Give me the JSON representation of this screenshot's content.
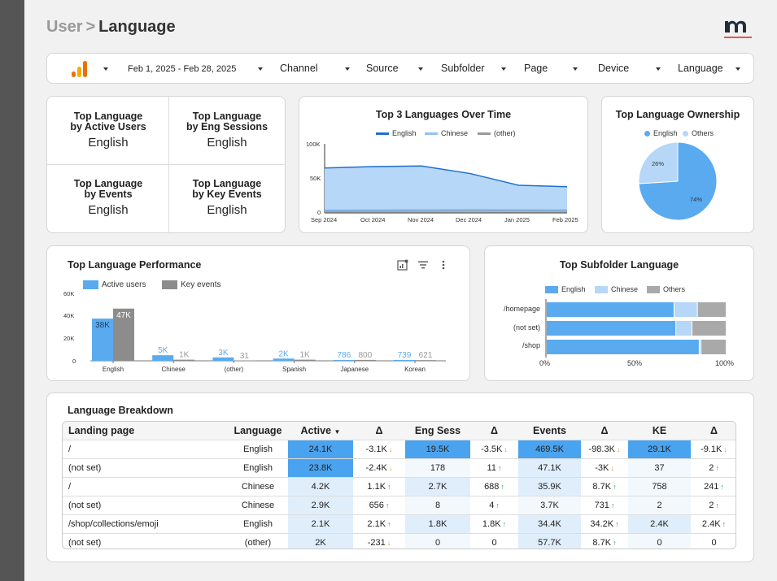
{
  "breadcrumb": {
    "parent": "User",
    "separator": ">",
    "current": "Language"
  },
  "filters": {
    "date_range": "Feb 1, 2025 - Feb 28, 2025",
    "items": [
      "Channel",
      "Source",
      "Subfolder",
      "Page",
      "Device",
      "Language"
    ]
  },
  "kpis": [
    {
      "label1": "Top Language",
      "label2": "by Active Users",
      "value": "English"
    },
    {
      "label1": "Top Language",
      "label2": "by Eng Sessions",
      "value": "English"
    },
    {
      "label1": "Top Language",
      "label2": "by Events",
      "value": "English"
    },
    {
      "label1": "Top Language",
      "label2": "by Key Events",
      "value": "English"
    }
  ],
  "colors": {
    "blue": "#5aaaf0",
    "light_blue": "#b6d7f7",
    "gray": "#9a9a9a",
    "green": "#2e9e3b",
    "orange": "#e8932a"
  },
  "over_time": {
    "title": "Top 3 Languages Over Time",
    "legend": [
      "English",
      "Chinese",
      "(other)"
    ],
    "y_ticks": [
      "100K",
      "50K",
      "0"
    ],
    "x_ticks": [
      "Sep 2024",
      "Oct 2024",
      "Nov 2024",
      "Dec 2024",
      "Jan 2025",
      "Feb 2025"
    ]
  },
  "ownership": {
    "title": "Top Language Ownership",
    "legend": [
      "English",
      "Others"
    ],
    "labels": [
      "74%",
      "26%"
    ]
  },
  "performance": {
    "title": "Top Language Performance",
    "legend": [
      "Active users",
      "Key events"
    ],
    "y_ticks": [
      "60K",
      "40K",
      "20K",
      "0"
    ],
    "categories": [
      "English",
      "Chinese",
      "(other)",
      "Spanish",
      "Japanese",
      "Korean"
    ],
    "active_labels": [
      "38K",
      "5K",
      "3K",
      "2K",
      "786",
      "739"
    ],
    "key_labels": [
      "47K",
      "1K",
      "31",
      "1K",
      "800",
      "621"
    ]
  },
  "subfolder": {
    "title": "Top Subfolder Language",
    "legend": [
      "English",
      "Chinese",
      "Others"
    ],
    "rows": [
      "/homepage",
      "(not set)",
      "/shop"
    ],
    "x_ticks": [
      "0%",
      "50%",
      "100%"
    ]
  },
  "breakdown": {
    "title": "Language Breakdown",
    "headers": [
      "Landing page",
      "Language",
      "Active",
      "Δ",
      "Eng Sess",
      "Δ",
      "Events",
      "Δ",
      "KE",
      "Δ"
    ],
    "rows": [
      [
        "/",
        "English",
        "24.1K",
        "-3.1K",
        "19.5K",
        "-3.5K",
        "469.5K",
        "-98.3K",
        "29.1K",
        "-9.1K"
      ],
      [
        "(not set)",
        "English",
        "23.8K",
        "-2.4K",
        "178",
        "11",
        "47.1K",
        "-3K",
        "37",
        "2"
      ],
      [
        "/",
        "Chinese",
        "4.2K",
        "1.1K",
        "2.7K",
        "688",
        "35.9K",
        "8.7K",
        "758",
        "241"
      ],
      [
        "(not set)",
        "Chinese",
        "2.9K",
        "656",
        "8",
        "4",
        "3.7K",
        "731",
        "2",
        "2"
      ],
      [
        "/shop/collections/emoji",
        "English",
        "2.1K",
        "2.1K",
        "1.8K",
        "1.8K",
        "34.4K",
        "34.2K",
        "2.4K",
        "2.4K"
      ],
      [
        "(not set)",
        "(other)",
        "2K",
        "-231",
        "0",
        "0",
        "57.7K",
        "8.7K",
        "0",
        "0"
      ]
    ]
  },
  "chart_data": [
    {
      "type": "area",
      "title": "Top 3 Languages Over Time",
      "x": [
        "Sep 2024",
        "Oct 2024",
        "Nov 2024",
        "Dec 2024",
        "Jan 2025",
        "Feb 2025"
      ],
      "ylim": [
        0,
        100000
      ],
      "series": [
        {
          "name": "English",
          "values": [
            65000,
            67000,
            68000,
            57000,
            40000,
            38000
          ]
        },
        {
          "name": "Chinese",
          "values": [
            4000,
            4200,
            4500,
            4800,
            4500,
            4200
          ]
        },
        {
          "name": "(other)",
          "values": [
            2000,
            2200,
            2300,
            2500,
            2400,
            2300
          ]
        }
      ]
    },
    {
      "type": "pie",
      "title": "Top Language Ownership",
      "categories": [
        "English",
        "Others"
      ],
      "values": [
        74,
        26
      ]
    },
    {
      "type": "bar",
      "title": "Top Language Performance",
      "categories": [
        "English",
        "Chinese",
        "(other)",
        "Spanish",
        "Japanese",
        "Korean"
      ],
      "ylim": [
        0,
        60000
      ],
      "series": [
        {
          "name": "Active users",
          "values": [
            38000,
            5000,
            3000,
            2000,
            786,
            739
          ]
        },
        {
          "name": "Key events",
          "values": [
            47000,
            1000,
            31,
            1000,
            800,
            621
          ]
        }
      ]
    },
    {
      "type": "bar",
      "title": "Top Subfolder Language",
      "categories": [
        "/homepage",
        "(not set)",
        "/shop"
      ],
      "series": [
        {
          "name": "English",
          "values": [
            71,
            72,
            85
          ]
        },
        {
          "name": "Chinese",
          "values": [
            13,
            9,
            1
          ]
        },
        {
          "name": "Others",
          "values": [
            16,
            19,
            14
          ]
        }
      ]
    }
  ]
}
